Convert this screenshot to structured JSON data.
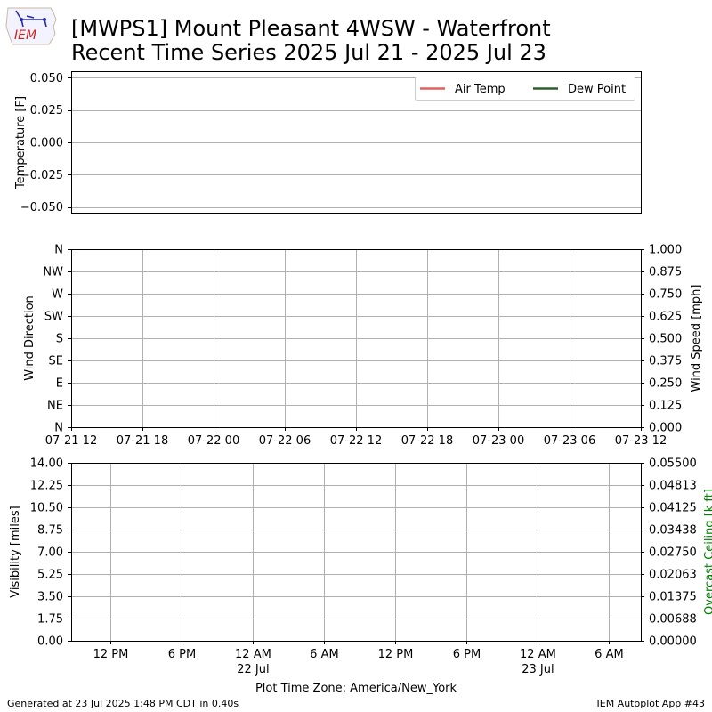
{
  "header": {
    "title_line1": "[MWPS1] Mount Pleasant 4WSW - Waterfront",
    "title_line2": "Recent Time Series 2025 Jul 21 - 2025 Jul 23",
    "logo_text": "IEM"
  },
  "footer": {
    "generated": "Generated at 23 Jul 2025 1:48 PM CDT in 0.40s",
    "app": "IEM Autoplot App #43"
  },
  "colors": {
    "air_temp": "#e06060",
    "dew_point": "#2e5e2e",
    "ceiling_label": "#008000",
    "grid": "#b0b0b0"
  },
  "chart_data": [
    {
      "type": "line",
      "panel": "temperature",
      "ylabel": "Temperature [F]",
      "ylim": [
        -0.055,
        0.055
      ],
      "yticks": [
        0.05,
        0.025,
        0.0,
        -0.025,
        -0.05
      ],
      "ytick_labels": [
        "0.050",
        "0.025",
        "0.000",
        "−0.025",
        "−0.050"
      ],
      "grid": "horizontal",
      "legend_position": "top-right",
      "series": [
        {
          "name": "Air Temp",
          "color": "#e06060",
          "values": []
        },
        {
          "name": "Dew Point",
          "color": "#2e5e2e",
          "values": []
        }
      ]
    },
    {
      "type": "scatter",
      "panel": "wind",
      "ylabel": "Wind Direction",
      "ylabel_right": "Wind Speed [mph]",
      "ylim": [
        0,
        360
      ],
      "yticks": [
        360,
        315,
        270,
        225,
        180,
        135,
        90,
        45,
        0
      ],
      "ytick_labels": [
        "N",
        "NW",
        "W",
        "SW",
        "S",
        "SE",
        "E",
        "NE",
        "N"
      ],
      "ylim_right": [
        0,
        1
      ],
      "yticks_right": [
        1.0,
        0.875,
        0.75,
        0.625,
        0.5,
        0.375,
        0.25,
        0.125,
        0.0
      ],
      "ytick_labels_right": [
        "1.000",
        "0.875",
        "0.750",
        "0.625",
        "0.500",
        "0.375",
        "0.250",
        "0.125",
        "0.000"
      ],
      "xlim": [
        "2025-07-21 12:00",
        "2025-07-23 12:00"
      ],
      "xticks": [
        "2025-07-21 12:00",
        "2025-07-21 18:00",
        "2025-07-22 00:00",
        "2025-07-22 06:00",
        "2025-07-22 12:00",
        "2025-07-22 18:00",
        "2025-07-23 00:00",
        "2025-07-23 06:00",
        "2025-07-23 12:00"
      ],
      "xtick_labels": [
        "07-21 12",
        "07-21 18",
        "07-22 00",
        "07-22 06",
        "07-22 12",
        "07-22 18",
        "07-23 00",
        "07-23 06",
        "07-23 12"
      ],
      "grid": "both",
      "series": []
    },
    {
      "type": "line",
      "panel": "visibility",
      "ylabel": "Visibility [miles]",
      "ylabel_right": "Overcast Ceiling [k ft]",
      "ylim": [
        0,
        14
      ],
      "yticks": [
        14,
        12.25,
        10.5,
        8.75,
        7,
        5.25,
        3.5,
        1.75,
        0
      ],
      "ytick_labels": [
        "14.00",
        "12.25",
        "10.50",
        "8.75",
        "7.00",
        "5.25",
        "3.50",
        "1.75",
        "0.00"
      ],
      "ylim_right": [
        0,
        0.055
      ],
      "yticks_right": [
        0.055,
        0.04813,
        0.04125,
        0.03438,
        0.0275,
        0.02063,
        0.01375,
        0.00688,
        0.0
      ],
      "ytick_labels_right": [
        "0.05500",
        "0.04813",
        "0.04125",
        "0.03438",
        "0.02750",
        "0.02063",
        "0.01375",
        "0.00688",
        "0.00000"
      ],
      "xlim": [
        "2025-07-21 08:40",
        "2025-07-23 08:40"
      ],
      "xticks": [
        "2025-07-21 12:00",
        "2025-07-21 18:00",
        "2025-07-22 00:00",
        "2025-07-22 06:00",
        "2025-07-22 12:00",
        "2025-07-22 18:00",
        "2025-07-23 00:00",
        "2025-07-23 06:00"
      ],
      "xtick_labels": [
        "12 PM",
        "6 PM",
        "12 AM",
        "6 AM",
        "12 PM",
        "6 PM",
        "12 AM",
        "6 AM"
      ],
      "xtick_sublabels": [
        "",
        "",
        "22 Jul",
        "",
        "",
        "",
        "23 Jul",
        ""
      ],
      "xlabel": "Plot Time Zone: America/New_York",
      "grid": "both",
      "series": []
    }
  ]
}
